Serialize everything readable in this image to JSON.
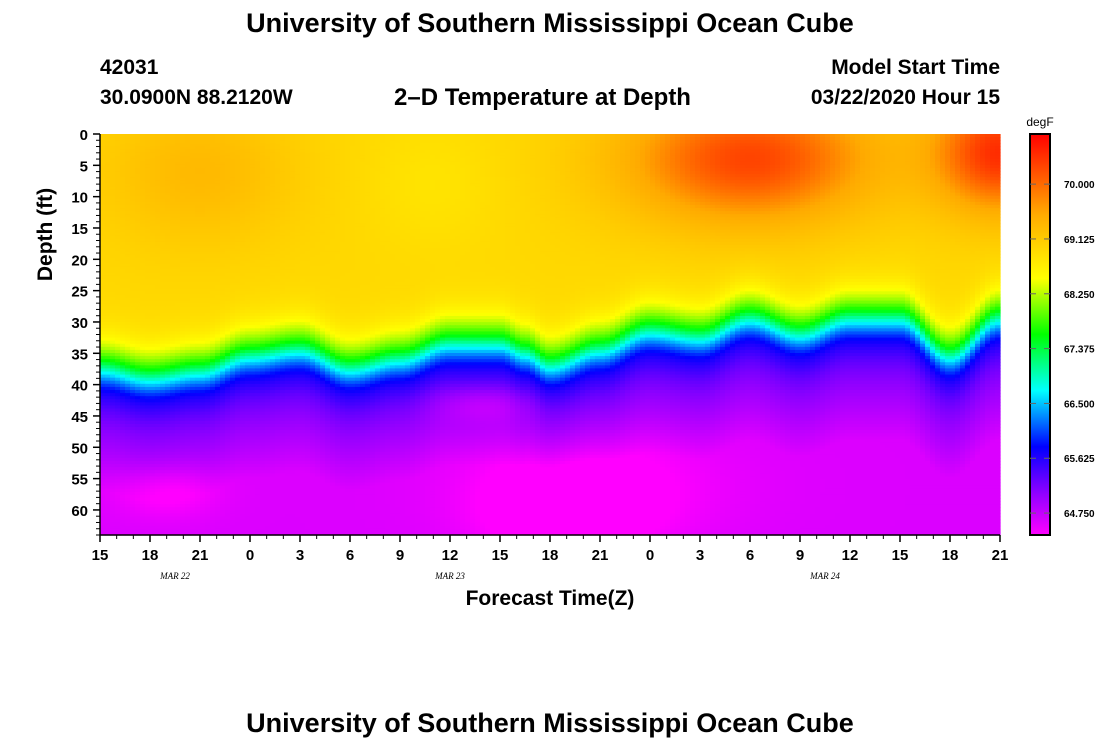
{
  "header": {
    "title": "University of Southern Mississippi Ocean Cube",
    "station_id": "42031",
    "coordinates": "30.0900N 88.2120W",
    "plot_title": "2–D Temperature at Depth",
    "model_start_label": "Model Start Time",
    "model_start_value": "03/22/2020 Hour 15"
  },
  "footer": {
    "title": "University of Southern Mississippi Ocean Cube"
  },
  "chart_data": {
    "type": "heatmap",
    "title": "2–D Temperature at Depth",
    "xlabel": "Forecast Time(Z)",
    "ylabel": "Depth (ft)",
    "x_hours": [
      0,
      3,
      6,
      9,
      12,
      15,
      18,
      21,
      24,
      27,
      30,
      33,
      36,
      39,
      42,
      45,
      48,
      51,
      54
    ],
    "x_tick_labels": [
      "15",
      "18",
      "21",
      "0",
      "3",
      "6",
      "9",
      "12",
      "15",
      "18",
      "21",
      "0",
      "3",
      "6",
      "9",
      "12",
      "15",
      "18",
      "21"
    ],
    "date_labels": [
      {
        "label": "MAR 22",
        "hour": 4.5
      },
      {
        "label": "MAR 23",
        "hour": 21
      },
      {
        "label": "MAR 24",
        "hour": 43.5
      }
    ],
    "xlim": [
      0,
      54
    ],
    "y_ticks": [
      0,
      5,
      10,
      15,
      20,
      25,
      30,
      35,
      40,
      45,
      50,
      55,
      60
    ],
    "ylim": [
      0,
      64
    ],
    "colorbar": {
      "unit": "degF",
      "ticks": [
        "70.000",
        "69.125",
        "68.250",
        "67.375",
        "66.500",
        "65.625",
        "64.750"
      ],
      "range": [
        64.4,
        70.8
      ]
    },
    "thermocline_depth_ft": [
      {
        "hour": 0,
        "depth": 37
      },
      {
        "hour": 3,
        "depth": 38.5
      },
      {
        "hour": 6,
        "depth": 37.5
      },
      {
        "hour": 9,
        "depth": 35
      },
      {
        "hour": 12,
        "depth": 34
      },
      {
        "hour": 15,
        "depth": 37
      },
      {
        "hour": 18,
        "depth": 35.5
      },
      {
        "hour": 21,
        "depth": 33
      },
      {
        "hour": 24,
        "depth": 33
      },
      {
        "hour": 25.5,
        "depth": 34.5
      },
      {
        "hour": 27,
        "depth": 36.5
      },
      {
        "hour": 30,
        "depth": 34
      },
      {
        "hour": 33,
        "depth": 31
      },
      {
        "hour": 36,
        "depth": 32
      },
      {
        "hour": 39,
        "depth": 29
      },
      {
        "hour": 42,
        "depth": 31.5
      },
      {
        "hour": 45,
        "depth": 29
      },
      {
        "hour": 48,
        "depth": 29
      },
      {
        "hour": 51,
        "depth": 35
      },
      {
        "hour": 54,
        "depth": 29
      }
    ],
    "surface_warm_spots": [
      {
        "hour": 6,
        "depth": 5,
        "peak_degF": 70.2
      },
      {
        "hour": 39,
        "depth": 4,
        "peak_degF": 70.7
      },
      {
        "hour": 54,
        "depth": 3,
        "peak_degF": 70.7
      }
    ],
    "deep_cold_spots": [
      {
        "hour": 4,
        "depth": 57,
        "min_degF": 64.7
      },
      {
        "hour": 27,
        "depth": 62,
        "min_degF": 64.4
      },
      {
        "hour": 23,
        "depth": 43,
        "min_degF": 64.8
      }
    ]
  }
}
